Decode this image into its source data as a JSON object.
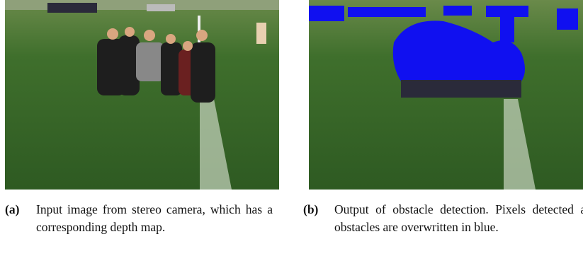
{
  "figure": {
    "subfigures": [
      {
        "label": "(a)",
        "caption": "Input image from stereo camera, which has a corresponding depth map."
      },
      {
        "label": "(b)",
        "caption": "Output of obstacle detection. Pixels detected as obstacles are overwritten in blue."
      }
    ]
  }
}
